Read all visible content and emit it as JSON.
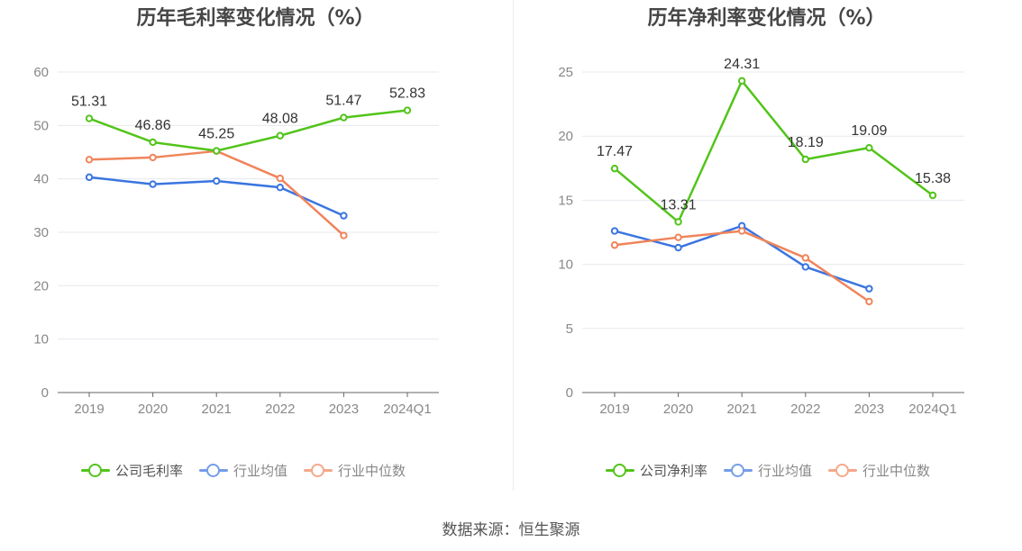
{
  "colors": {
    "company": "#52c41a",
    "industry_avg": "#3a75e0",
    "industry_median": "#f0845a",
    "grid": "#e6e8ee",
    "axis": "#666666",
    "tick_text": "#888888",
    "label_text": "#333333"
  },
  "source": "数据来源：恒生聚源",
  "chart_data": [
    {
      "type": "line",
      "title": "历年毛利率变化情况（%）",
      "categories": [
        "2019",
        "2020",
        "2021",
        "2022",
        "2023",
        "2024Q1"
      ],
      "ylim": [
        0,
        60
      ],
      "yticks": [
        "0",
        "10",
        "20",
        "30",
        "40",
        "50",
        "60"
      ],
      "grid": true,
      "legend_position": "bottom",
      "series": [
        {
          "key": "company",
          "name": "公司毛利率",
          "values": [
            51.31,
            46.86,
            45.25,
            48.08,
            51.47,
            52.83
          ],
          "labels": [
            "51.31",
            "46.86",
            "45.25",
            "48.08",
            "51.47",
            "52.83"
          ]
        },
        {
          "key": "industry_avg",
          "name": "行业均值",
          "values": [
            40.3,
            39.0,
            39.6,
            38.4,
            33.1,
            null
          ]
        },
        {
          "key": "industry_median",
          "name": "行业中位数",
          "values": [
            43.6,
            44.0,
            45.2,
            40.1,
            29.4,
            null
          ]
        }
      ]
    },
    {
      "type": "line",
      "title": "历年净利率变化情况（%）",
      "categories": [
        "2019",
        "2020",
        "2021",
        "2022",
        "2023",
        "2024Q1"
      ],
      "ylim": [
        0,
        25
      ],
      "yticks": [
        "0",
        "5",
        "10",
        "15",
        "20",
        "25"
      ],
      "grid": true,
      "legend_position": "bottom",
      "series": [
        {
          "key": "company",
          "name": "公司净利率",
          "values": [
            17.47,
            13.31,
            24.31,
            18.19,
            19.09,
            15.38
          ],
          "labels": [
            "17.47",
            "13.31",
            "24.31",
            "18.19",
            "19.09",
            "15.38"
          ]
        },
        {
          "key": "industry_avg",
          "name": "行业均值",
          "values": [
            12.6,
            11.3,
            13.0,
            9.8,
            8.1,
            null
          ]
        },
        {
          "key": "industry_median",
          "name": "行业中位数",
          "values": [
            11.5,
            12.1,
            12.6,
            10.5,
            7.1,
            null
          ]
        }
      ]
    }
  ]
}
